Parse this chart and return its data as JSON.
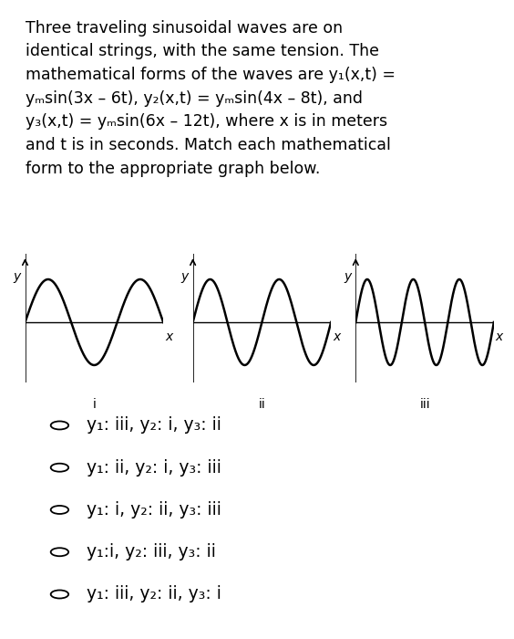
{
  "title_text": "Three traveling sinusoidal waves are on\nidentical strings, with the same tension. The\nmathematical forms of the waves are y₁(x,t) =\nyₘsin(3x – 6t), y₂(x,t) = yₘsin(4x – 8t), and\ny₃(x,t) = yₘsin(6x – 12t), where x is in meters\nand t is in seconds. Match each mathematical\nform to the appropriate graph below.",
  "background_color": "#ffffff",
  "text_color": "#000000",
  "wave1_cycles": 1.5,
  "wave2_cycles": 2.0,
  "wave3_cycles": 3.0,
  "graph_labels": [
    "i",
    "ii",
    "iii"
  ],
  "options": [
    "y₁: iii, y₂: i, y₃: ii",
    "y₁: ii, y₂: i, y₃: iii",
    "y₁: i, y₂: ii, y₃: iii",
    "y₁:i, y₂: iii, y₃: ii",
    "y₁: iii, y₂: ii, y₃: i"
  ],
  "font_size_title": 12.5,
  "font_size_options": 13.5,
  "font_size_graph_label": 10,
  "line_width": 1.8
}
